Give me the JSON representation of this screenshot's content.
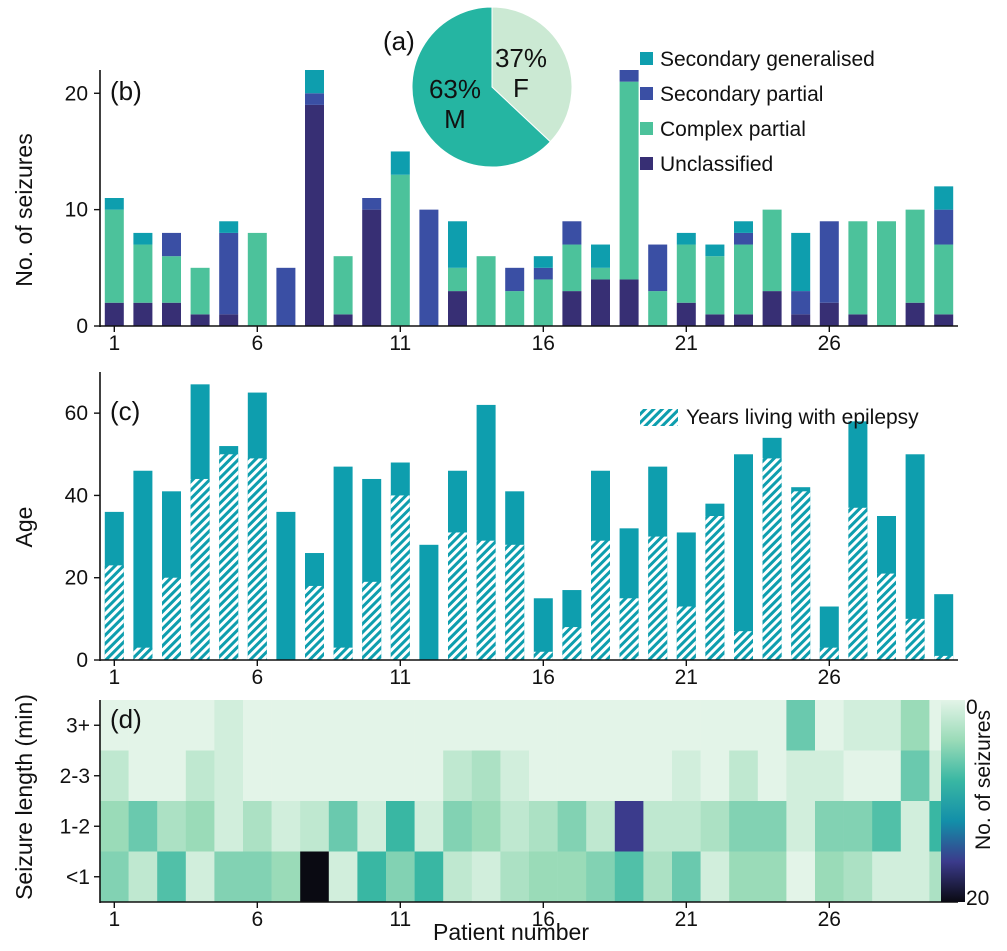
{
  "colors": {
    "secondary_generalised": "#0e9eae",
    "secondary_partial": "#3a4fa4",
    "complex_partial": "#4cc29b",
    "unclassified": "#372f74",
    "age": "#0e9eae",
    "pie_male": "#25b5a2",
    "pie_female": "#cbe9d3"
  },
  "chart_data": [
    {
      "panel": "(a)",
      "type": "pie",
      "slices": [
        {
          "label": "F",
          "pct_label": "37%",
          "value": 37
        },
        {
          "label": "M",
          "pct_label": "63%",
          "value": 63
        }
      ]
    },
    {
      "panel": "(b)",
      "type": "bar",
      "stacked": true,
      "ylabel": "No. of seizures",
      "ylim": [
        0,
        22
      ],
      "yticks": [
        0,
        10,
        20
      ],
      "xticks": [
        1,
        6,
        11,
        16,
        21,
        26
      ],
      "x": [
        1,
        2,
        3,
        4,
        5,
        6,
        7,
        8,
        9,
        10,
        11,
        12,
        13,
        14,
        15,
        16,
        17,
        18,
        19,
        20,
        21,
        22,
        23,
        24,
        25,
        26,
        27,
        28,
        29,
        30
      ],
      "legend": "top-right",
      "series": [
        {
          "name": "Unclassified",
          "key": "unclassified",
          "values": [
            2,
            2,
            2,
            1,
            1,
            0,
            0,
            19,
            1,
            10,
            0,
            0,
            3,
            0,
            0,
            0,
            3,
            4,
            4,
            0,
            2,
            1,
            1,
            3,
            1,
            2,
            1,
            0,
            2,
            1
          ]
        },
        {
          "name": "Complex partial",
          "key": "complex_partial",
          "values": [
            8,
            5,
            4,
            4,
            0,
            8,
            0,
            0,
            5,
            0,
            13,
            0,
            2,
            6,
            3,
            4,
            4,
            1,
            17,
            3,
            5,
            5,
            6,
            7,
            0,
            0,
            8,
            9,
            8,
            6
          ]
        },
        {
          "name": "Secondary partial",
          "key": "secondary_partial",
          "values": [
            0,
            0,
            2,
            0,
            7,
            0,
            5,
            1,
            0,
            1,
            0,
            10,
            0,
            0,
            2,
            1,
            2,
            0,
            1,
            4,
            0,
            0,
            1,
            0,
            2,
            7,
            0,
            0,
            0,
            3
          ]
        },
        {
          "name": "Secondary generalised",
          "key": "secondary_generalised",
          "values": [
            1,
            1,
            0,
            0,
            1,
            0,
            0,
            2,
            0,
            0,
            2,
            0,
            4,
            0,
            0,
            1,
            0,
            2,
            0,
            0,
            1,
            1,
            1,
            0,
            5,
            0,
            0,
            0,
            0,
            2
          ]
        }
      ],
      "legend_order": [
        "Secondary generalised",
        "Secondary partial",
        "Complex partial",
        "Unclassified"
      ]
    },
    {
      "panel": "(c)",
      "type": "bar",
      "ylabel": "Age",
      "ylim": [
        0,
        70
      ],
      "yticks": [
        0,
        20,
        40,
        60
      ],
      "xticks": [
        1,
        6,
        11,
        16,
        21,
        26
      ],
      "x": [
        1,
        2,
        3,
        4,
        5,
        6,
        7,
        8,
        9,
        10,
        11,
        12,
        13,
        14,
        15,
        16,
        17,
        18,
        19,
        20,
        21,
        22,
        23,
        24,
        25,
        26,
        27,
        28,
        29,
        30
      ],
      "age": [
        36,
        46,
        41,
        67,
        52,
        65,
        36,
        26,
        47,
        44,
        48,
        28,
        46,
        62,
        41,
        15,
        17,
        46,
        32,
        47,
        31,
        38,
        50,
        54,
        42,
        13,
        58,
        35,
        50,
        16
      ],
      "years_living_with_epilepsy": [
        23,
        3,
        20,
        44,
        50,
        49,
        0,
        18,
        3,
        19,
        40,
        0,
        31,
        29,
        28,
        2,
        8,
        29,
        15,
        30,
        13,
        35,
        7,
        49,
        41,
        3,
        37,
        21,
        10,
        1
      ],
      "legend": {
        "label": "Years living with epilepsy",
        "position": "top-right"
      }
    },
    {
      "panel": "(d)",
      "type": "heatmap",
      "ylabel": "Seizure length (min)",
      "xlabel": "Patient number",
      "rows": [
        "3+",
        "2-3",
        "1-2",
        "<1"
      ],
      "xticks": [
        1,
        6,
        11,
        16,
        21,
        26
      ],
      "colorbar": {
        "label": "No. of seizures",
        "min": 0,
        "max": 20
      },
      "values": [
        [
          0,
          0,
          0,
          0,
          1,
          0,
          0,
          0,
          0,
          0,
          0,
          0,
          0,
          0,
          0,
          0,
          0,
          0,
          0,
          0,
          0,
          0,
          0,
          0,
          6,
          0,
          1,
          1,
          4,
          0
        ],
        [
          2,
          0,
          0,
          2,
          1,
          0,
          0,
          0,
          0,
          0,
          0,
          0,
          2,
          3,
          1,
          0,
          0,
          0,
          0,
          0,
          1,
          0,
          2,
          0,
          1,
          1,
          0,
          0,
          6,
          1
        ],
        [
          4,
          6,
          3,
          4,
          1,
          3,
          1,
          2,
          6,
          1,
          8,
          1,
          5,
          4,
          2,
          3,
          5,
          2,
          16,
          2,
          2,
          3,
          5,
          5,
          1,
          5,
          5,
          7,
          1,
          8
        ],
        [
          5,
          2,
          7,
          1,
          5,
          5,
          4,
          20,
          1,
          8,
          5,
          8,
          2,
          1,
          3,
          4,
          4,
          5,
          7,
          3,
          6,
          1,
          4,
          4,
          0,
          4,
          3,
          1,
          1,
          3
        ]
      ]
    }
  ]
}
